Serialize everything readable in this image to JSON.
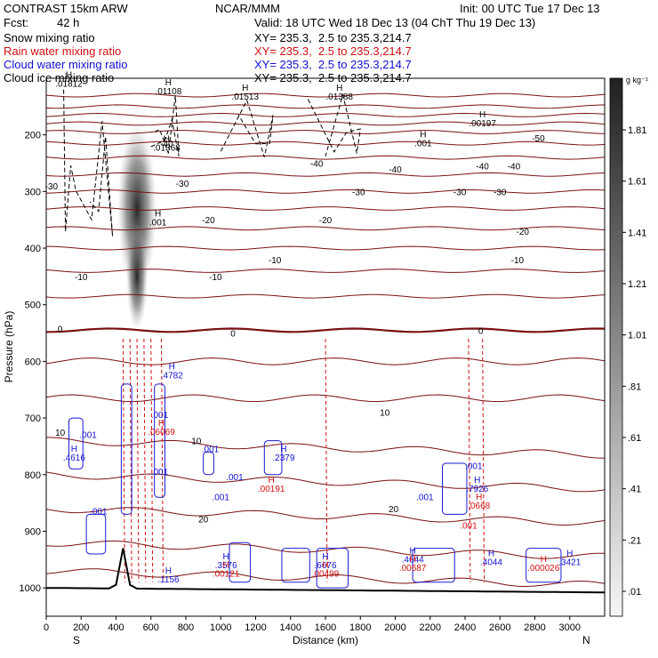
{
  "header": {
    "model": "CONTRAST 15km ARW",
    "org": "NCAR/MMM",
    "init": "Init: 00 UTC Tue 17 Dec 13",
    "fcst_label": "Fcst:",
    "fcst_value": "42 h",
    "valid": "Valid: 18 UTC Wed 18 Dec 13 (04 ChT Thu 19 Dec 13)",
    "fields": [
      {
        "name": "Snow mixing ratio",
        "xy": "XY= 235.3,  2.5 to 235.3,214.7",
        "color": "#000000"
      },
      {
        "name": "Rain water mixing ratio",
        "xy": "XY= 235.3,  2.5 to 235.3,214.7",
        "color": "#d01010"
      },
      {
        "name": "Cloud water mixing ratio",
        "xy": "XY= 235.3,  2.5 to 235.3,214.7",
        "color": "#1010d0"
      },
      {
        "name": "Cloud ice mixing ratio",
        "xy": "XY= 235.3,  2.5 to 235.3,214.7",
        "color": "#000000"
      }
    ]
  },
  "chart_data": {
    "type": "heatmap",
    "xlabel": "Distance (km)",
    "ylabel": "Pressure (hPa)",
    "xlim": [
      0,
      3200
    ],
    "ylim": [
      1050,
      100
    ],
    "x_ticks": [
      0,
      200,
      400,
      600,
      800,
      1000,
      1200,
      1400,
      1600,
      1800,
      2000,
      2200,
      2400,
      2600,
      2800,
      3000
    ],
    "y_ticks": [
      200,
      300,
      400,
      500,
      600,
      700,
      800,
      900,
      1000
    ],
    "x_end_left": "S",
    "x_end_right": "N",
    "colorbar": {
      "unit": "g kg⁻¹",
      "ticks": [
        "1.81",
        "1.61",
        "1.41",
        "1.21",
        "1.01",
        ".81",
        ".61",
        ".41",
        ".21",
        ".01"
      ]
    },
    "temperature_labels": [
      {
        "x": 1790,
        "p": 300,
        "text": "-30"
      },
      {
        "x": 2370,
        "p": 300,
        "text": "-30"
      },
      {
        "x": 2600,
        "p": 300,
        "text": "-30"
      },
      {
        "x": 30,
        "p": 290,
        "text": "-30"
      },
      {
        "x": 780,
        "p": 285,
        "text": "-30"
      },
      {
        "x": 2000,
        "p": 260,
        "text": "-40"
      },
      {
        "x": 2500,
        "p": 255,
        "text": "-40"
      },
      {
        "x": 2680,
        "p": 255,
        "text": "-40"
      },
      {
        "x": 690,
        "p": 215,
        "text": "-40"
      },
      {
        "x": 1550,
        "p": 250,
        "text": "-40"
      },
      {
        "x": 2820,
        "p": 205,
        "text": "-50"
      },
      {
        "x": 930,
        "p": 350,
        "text": "-20"
      },
      {
        "x": 1600,
        "p": 350,
        "text": "-20"
      },
      {
        "x": 2730,
        "p": 370,
        "text": "-20"
      },
      {
        "x": 2700,
        "p": 420,
        "text": "-10"
      },
      {
        "x": 1310,
        "p": 420,
        "text": "-10"
      },
      {
        "x": 970,
        "p": 450,
        "text": "-10"
      },
      {
        "x": 200,
        "p": 450,
        "text": "-10"
      },
      {
        "x": 2490,
        "p": 545,
        "text": "0"
      },
      {
        "x": 1070,
        "p": 550,
        "text": "0"
      },
      {
        "x": 80,
        "p": 542,
        "text": "0"
      },
      {
        "x": 1940,
        "p": 690,
        "text": "10"
      },
      {
        "x": 80,
        "p": 725,
        "text": "10"
      },
      {
        "x": 860,
        "p": 740,
        "text": "10"
      },
      {
        "x": 1990,
        "p": 860,
        "text": "20"
      },
      {
        "x": 900,
        "p": 878,
        "text": "20"
      }
    ],
    "max_labels": [
      {
        "x": 130,
        "p": 115,
        "value": ".01812",
        "color": "#000000"
      },
      {
        "x": 700,
        "p": 128,
        "value": ".01108",
        "color": "#000000"
      },
      {
        "x": 1140,
        "p": 138,
        "value": ".01513",
        "color": "#000000"
      },
      {
        "x": 1680,
        "p": 138,
        "value": ".01388",
        "color": "#000000"
      },
      {
        "x": 2500,
        "p": 185,
        "value": ".00197",
        "color": "#000000"
      },
      {
        "x": 690,
        "p": 228,
        "value": ".01368",
        "color": "#000000"
      },
      {
        "x": 2160,
        "p": 220,
        "value": ".001",
        "color": "#000000"
      },
      {
        "x": 640,
        "p": 360,
        "value": ".001",
        "color": "#000000"
      },
      {
        "x": 720,
        "p": 630,
        "value": ".4782",
        "color": "#1010d0"
      },
      {
        "x": 660,
        "p": 730,
        "value": ".06069",
        "color": "#d01010"
      },
      {
        "x": 160,
        "p": 775,
        "value": ".4616",
        "color": "#1010d0"
      },
      {
        "x": 1360,
        "p": 775,
        "value": ".2379",
        "color": "#1010d0"
      },
      {
        "x": 1290,
        "p": 830,
        "value": ".00191",
        "color": "#d01010"
      },
      {
        "x": 2470,
        "p": 830,
        "value": ".7926",
        "color": "#1010d0"
      },
      {
        "x": 2480,
        "p": 860,
        "value": ".0668",
        "color": "#d01010"
      },
      {
        "x": 1030,
        "p": 965,
        "value": ".3576",
        "color": "#1010d0"
      },
      {
        "x": 1030,
        "p": 980,
        "value": ".00121",
        "color": "#d01010"
      },
      {
        "x": 1600,
        "p": 965,
        "value": ".6676",
        "color": "#1010d0"
      },
      {
        "x": 1600,
        "p": 980,
        "value": ".00499",
        "color": "#d01010"
      },
      {
        "x": 2100,
        "p": 955,
        "value": ".4644",
        "color": "#1010d0"
      },
      {
        "x": 2100,
        "p": 970,
        "value": ".00687",
        "color": "#d01010"
      },
      {
        "x": 2550,
        "p": 960,
        "value": ".4044",
        "color": "#1010d0"
      },
      {
        "x": 2850,
        "p": 970,
        "value": ".000026",
        "color": "#d01010"
      },
      {
        "x": 3000,
        "p": 960,
        "value": ".3421",
        "color": "#1010d0"
      },
      {
        "x": 700,
        "p": 990,
        "value": ".1156",
        "color": "#1010d0"
      }
    ],
    "min_labels": [
      {
        "x": 240,
        "p": 735,
        "value": ".001",
        "color": "#1010d0"
      },
      {
        "x": 940,
        "p": 760,
        "value": ".001",
        "color": "#1010d0"
      },
      {
        "x": 1080,
        "p": 810,
        "value": ".001",
        "color": "#1010d0"
      },
      {
        "x": 1000,
        "p": 845,
        "value": ".001",
        "color": "#1010d0"
      },
      {
        "x": 650,
        "p": 700,
        "value": ".001",
        "color": "#1010d0"
      },
      {
        "x": 300,
        "p": 870,
        "value": ".001",
        "color": "#1010d0"
      },
      {
        "x": 2170,
        "p": 845,
        "value": ".001",
        "color": "#1010d0"
      },
      {
        "x": 2420,
        "p": 895,
        "value": ".001",
        "color": "#d01010"
      },
      {
        "x": 2450,
        "p": 790,
        "value": ".001",
        "color": "#1010d0"
      },
      {
        "x": 650,
        "p": 800,
        "value": ".001",
        "color": "#1010d0"
      }
    ]
  }
}
